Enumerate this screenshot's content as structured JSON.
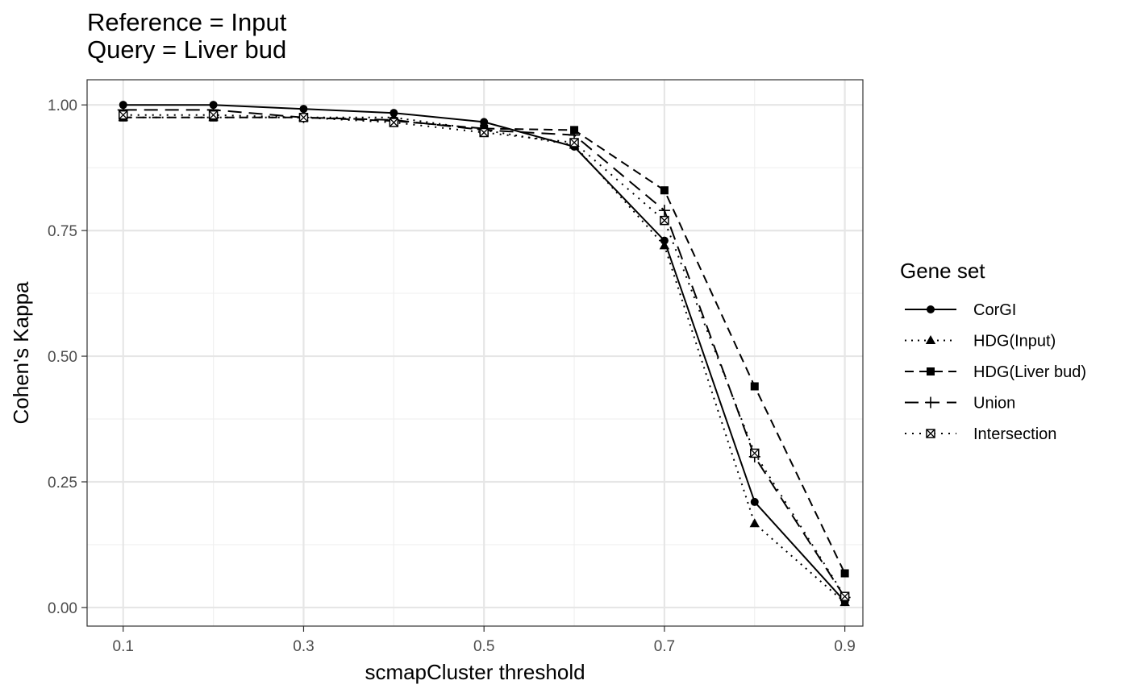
{
  "chart_data": {
    "type": "line",
    "title_lines": [
      "Reference = Input",
      "Query = Liver bud"
    ],
    "xlabel": "scmapCluster threshold",
    "ylabel": "Cohen's Kappa",
    "xlim": [
      0.06,
      0.92
    ],
    "ylim": [
      -0.037,
      1.05
    ],
    "x_ticks": [
      0.1,
      0.3,
      0.5,
      0.7,
      0.9
    ],
    "x_tick_labels": [
      "0.1",
      "0.3",
      "0.5",
      "0.7",
      "0.9"
    ],
    "x_minor_ticks": [
      0.2,
      0.4,
      0.6,
      0.8
    ],
    "y_ticks": [
      0,
      0.25,
      0.5,
      0.75,
      1
    ],
    "y_tick_labels": [
      "0.00",
      "0.25",
      "0.50",
      "0.75",
      "1.00"
    ],
    "y_minor_ticks": [
      0.125,
      0.375,
      0.625,
      0.875
    ],
    "grid": true,
    "legend_title": "Gene set",
    "legend_position": "right",
    "x": [
      0.1,
      0.2,
      0.3,
      0.4,
      0.5,
      0.6,
      0.7,
      0.8,
      0.9
    ],
    "series": [
      {
        "name": "CorGI",
        "linetype": "solid",
        "shape": "circle",
        "values": [
          1.0,
          1.0,
          0.992,
          0.984,
          0.966,
          0.917,
          0.73,
          0.21,
          0.012
        ]
      },
      {
        "name": "HDG(Input)",
        "linetype": "dotted",
        "shape": "triangle",
        "values": [
          0.975,
          0.975,
          0.975,
          0.975,
          0.95,
          0.92,
          0.72,
          0.167,
          0.01
        ]
      },
      {
        "name": "HDG(Liver bud)",
        "linetype": "dashed",
        "shape": "square",
        "values": [
          0.975,
          0.975,
          0.975,
          0.968,
          0.953,
          0.95,
          0.83,
          0.44,
          0.068
        ]
      },
      {
        "name": "Union",
        "linetype": "longdash",
        "shape": "plus",
        "values": [
          0.99,
          0.99,
          0.975,
          0.97,
          0.95,
          0.94,
          0.79,
          0.3,
          0.02
        ]
      },
      {
        "name": "Intersection",
        "linetype": "dotdash",
        "shape": "square-cross",
        "values": [
          0.98,
          0.98,
          0.975,
          0.965,
          0.945,
          0.925,
          0.77,
          0.307,
          0.022
        ]
      }
    ]
  }
}
